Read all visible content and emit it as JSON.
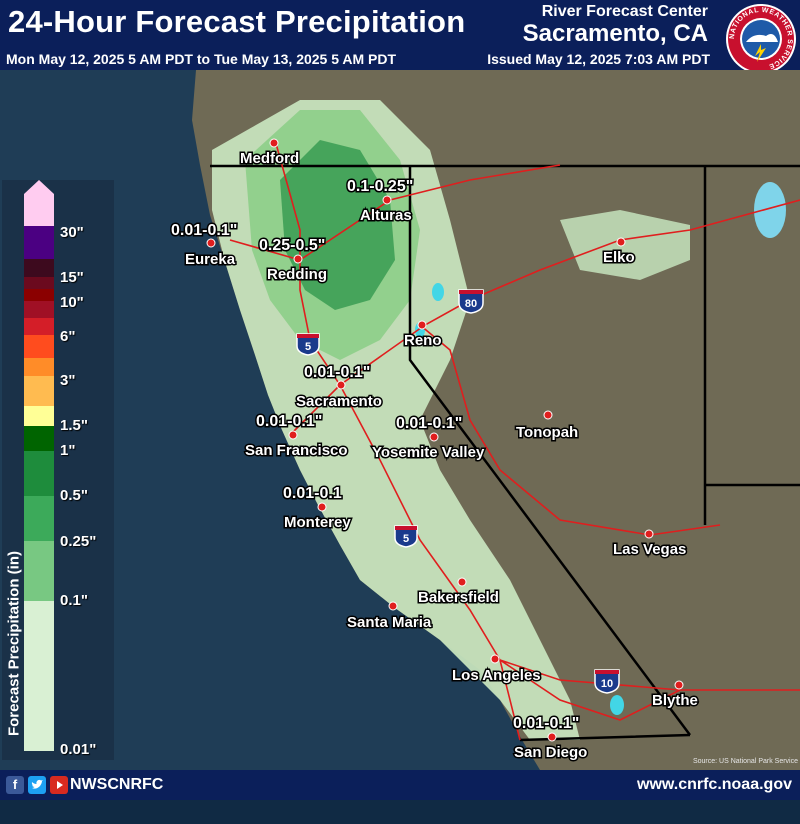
{
  "header": {
    "title": "24-Hour Forecast Precipitation",
    "rfc_label": "River Forecast Center",
    "rfc_city": "Sacramento, CA",
    "period": "Mon May 12, 2025 5 AM PDT to Tue May 13, 2025 5 AM PDT",
    "issued": "Issued May 12, 2025 7:03 AM PDT",
    "logo_text": "NATIONAL WEATHER SERVICE"
  },
  "legend": {
    "title": "Forecast Precipitation (in)",
    "ticks": [
      "30\"",
      "15\"",
      "10\"",
      "6\"",
      "3\"",
      "1.5\"",
      "1\"",
      "0.5\"",
      "0.25\"",
      "0.1\"",
      "0.01\""
    ],
    "colors": [
      "#ffccf0",
      "#4b0082",
      "#3d0a1e",
      "#6b0a1e",
      "#8b0000",
      "#a01025",
      "#d41e28",
      "#ff4c1e",
      "#ff8c28",
      "#ffbb50",
      "#ffff96",
      "#006400",
      "#1e8c3c",
      "#3caa5a",
      "#78c882",
      "#a6dba0",
      "#d9f0d3"
    ]
  },
  "cities": [
    {
      "name": "Medford"
    },
    {
      "name": "Eureka"
    },
    {
      "name": "Redding"
    },
    {
      "name": "Alturas"
    },
    {
      "name": "Elko"
    },
    {
      "name": "Reno"
    },
    {
      "name": "Sacramento"
    },
    {
      "name": "San Francisco"
    },
    {
      "name": "Yosemite Valley"
    },
    {
      "name": "Tonopah"
    },
    {
      "name": "Monterey"
    },
    {
      "name": "Las Vegas"
    },
    {
      "name": "Bakersfield"
    },
    {
      "name": "Santa Maria"
    },
    {
      "name": "Los Angeles"
    },
    {
      "name": "Blythe"
    },
    {
      "name": "San Diego"
    }
  ],
  "precip_labels": [
    {
      "text": "0.1-0.25\""
    },
    {
      "text": "0.01-0.1\""
    },
    {
      "text": "0.25-0.5\""
    },
    {
      "text": "0.01-0.1\""
    },
    {
      "text": "0.01-0.1\""
    },
    {
      "text": "0.01-0.1\""
    },
    {
      "text": "0.01-0.1"
    },
    {
      "text": "0.01-0.1\""
    }
  ],
  "shields": [
    {
      "number": "5",
      "type": "interstate"
    },
    {
      "number": "80",
      "type": "interstate"
    },
    {
      "number": "5",
      "type": "interstate"
    },
    {
      "number": "10",
      "type": "interstate"
    }
  ],
  "footer": {
    "handle": "NWSCNRFC",
    "website": "www.cnrfc.noaa.gov",
    "social_icons": [
      "facebook-icon",
      "twitter-icon",
      "youtube-icon"
    ]
  },
  "source_note": "Source: US National Park Service"
}
